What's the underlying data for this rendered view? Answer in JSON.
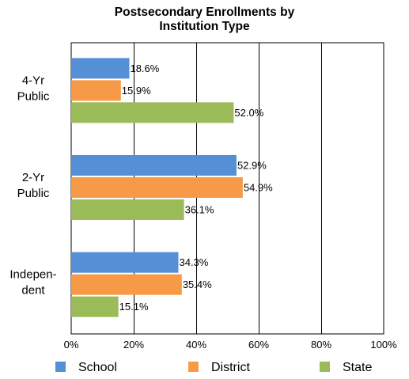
{
  "chart_data": {
    "type": "bar",
    "orientation": "horizontal",
    "title_lines": [
      "Postsecondary Enrollments by",
      "Institution Type"
    ],
    "categories": [
      {
        "lines": [
          "4-Yr",
          "Public"
        ]
      },
      {
        "lines": [
          "2-Yr",
          "Public"
        ]
      },
      {
        "lines": [
          "Indepen-",
          "dent"
        ]
      }
    ],
    "series": [
      {
        "name": "School",
        "color": "#5590d6",
        "values": [
          18.6,
          52.9,
          34.3
        ],
        "labels": [
          "18.6%",
          "52.9%",
          "34.3%"
        ]
      },
      {
        "name": "District",
        "color": "#f79a48",
        "values": [
          15.9,
          54.9,
          35.4
        ],
        "labels": [
          "15.9%",
          "54.9%",
          "35.4%"
        ]
      },
      {
        "name": "State",
        "color": "#9bbb59",
        "values": [
          52.0,
          36.1,
          15.1
        ],
        "labels": [
          "52.0%",
          "36.1%",
          "15.1%"
        ]
      }
    ],
    "xlim": [
      0,
      100
    ],
    "xticks": [
      0,
      20,
      40,
      60,
      80,
      100
    ],
    "xtick_labels": [
      "0%",
      "20%",
      "40%",
      "60%",
      "80%",
      "100%"
    ],
    "grid": "vertical",
    "legend_position": "bottom"
  }
}
